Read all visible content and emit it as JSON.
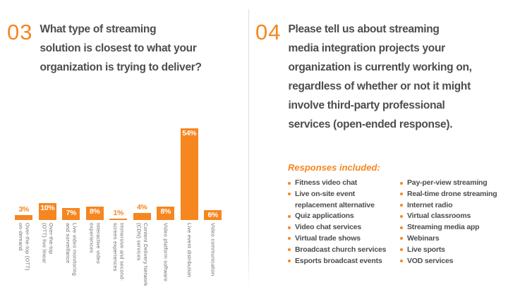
{
  "colors": {
    "accent_orange": "#F6861F",
    "text_dark": "#4C4D4F",
    "axis_label_gray": "#6C6D70",
    "divider_gray": "#E0E0E0",
    "background": "#FFFFFF"
  },
  "left": {
    "number": "03",
    "question": "What type of streaming\nsolution is closest to what your\norganization is trying to deliver?"
  },
  "right": {
    "number": "04",
    "question": "Please tell us about streaming\nmedia integration projects your\norganization is currently working on,\nregardless of whether or not it might\ninvolve third-party professional\nservices (open-ended response).",
    "responses_label": "Responses included:",
    "lists": {
      "column1": [
        "Fitness video chat",
        "Live on-site event\nreplacement alternative",
        "Quiz applications",
        "Video chat services",
        "Virtual trade shows",
        "Broadcast church services",
        "Esports broadcast events"
      ],
      "column2": [
        "Pay-per-view streaming",
        "Real-time drone streaming",
        "Internet radio",
        "Virtual classrooms",
        "Streaming media app",
        "Webinars",
        "Live sports",
        "VOD services"
      ]
    }
  },
  "chart_data": {
    "type": "bar",
    "title": "",
    "xlabel": "",
    "ylabel": "",
    "ylim": [
      0,
      54
    ],
    "grid": false,
    "legend": false,
    "bar_color": "#F6861F",
    "categories": [
      "Over-the-top (OTT) on-demand",
      "Over-the-top (OTT) live linear",
      "Live video monitoring and surveillance",
      "Interactive video experiences",
      "Immersive and second-screen experiences",
      "Content Delivery Network (CDN) services",
      "Video platform software",
      "Live event distribution",
      "Video communication"
    ],
    "categories_wrapped": [
      "Over-the-top (OTT)\non-demand",
      "Over-the-top\n(OTT) live linear",
      "Live video monitoring\nand surveillance",
      "Interactive video\nexperiences",
      "Immersive and second-\nscreen experiences",
      "Content Delivery Network\n(CDN) services",
      "Video platform software",
      "Live event distribution",
      "Video communication"
    ],
    "values": [
      3,
      10,
      7,
      8,
      1,
      4,
      8,
      54,
      6
    ],
    "value_labels": [
      "3%",
      "10%",
      "7%",
      "8%",
      "1%",
      "4%",
      "8%",
      "54%",
      "6%"
    ]
  }
}
